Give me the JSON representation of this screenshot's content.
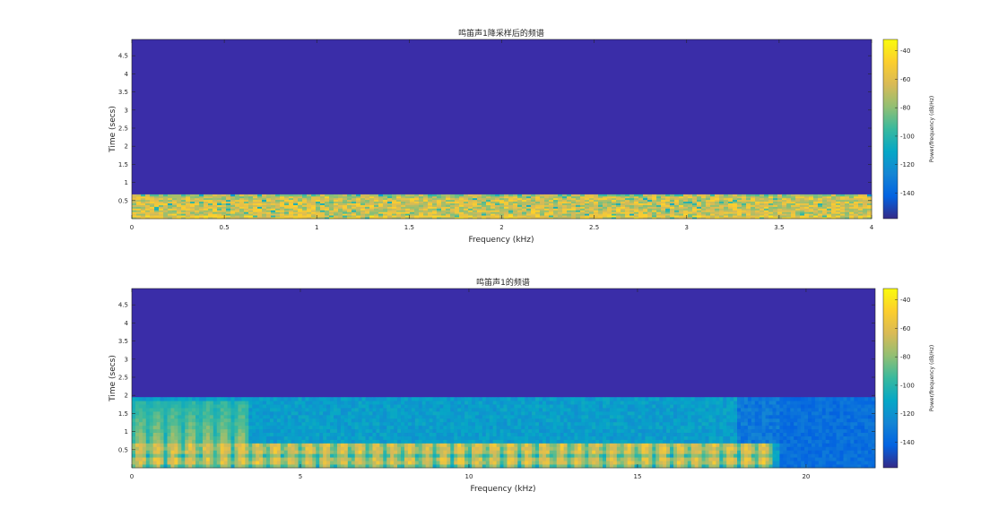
{
  "chart_data": [
    {
      "type": "heatmap",
      "title": "鸣笛声1降采样后的频谱",
      "xlabel": "Frequency (kHz)",
      "ylabel": "Time (secs)",
      "xlim": [
        0,
        4
      ],
      "ylim": [
        0,
        4.95
      ],
      "xticks": [
        "0",
        "0.5",
        "1",
        "1.5",
        "2",
        "2.5",
        "3",
        "3.5",
        "4"
      ],
      "yticks": [
        "0.5",
        "1",
        "1.5",
        "2",
        "2.5",
        "3",
        "3.5",
        "4",
        "4.5"
      ],
      "signal_end_time": 0.67,
      "colorbar": {
        "label": "Power/frequency (dB/Hz)",
        "ticks": [
          "-40",
          "-60",
          "-80",
          "-100",
          "-120",
          "-140"
        ],
        "range": [
          -158,
          -32
        ]
      }
    },
    {
      "type": "heatmap",
      "title": "鸣笛声1的频谱",
      "xlabel": "Frequency (kHz)",
      "ylabel": "Time (secs)",
      "xlim": [
        0,
        22.05
      ],
      "ylim": [
        0,
        4.95
      ],
      "xticks": [
        "0",
        "5",
        "10",
        "15",
        "20"
      ],
      "yticks": [
        "0.5",
        "1",
        "1.5",
        "2",
        "2.5",
        "3",
        "3.5",
        "4",
        "4.5"
      ],
      "signal_end_time": 1.95,
      "colorbar": {
        "label": "Power/frequency (dB/Hz)",
        "ticks": [
          "-40",
          "-60",
          "-80",
          "-100",
          "-120",
          "-140"
        ],
        "range": [
          -158,
          -32
        ]
      }
    }
  ],
  "colors": {
    "background": "#3a2da8",
    "parula": [
      "#352a87",
      "#0363e1",
      "#1485d4",
      "#06a7c6",
      "#38b99e",
      "#92bf73",
      "#d9ba56",
      "#fcce2e",
      "#f9fb0e"
    ]
  }
}
